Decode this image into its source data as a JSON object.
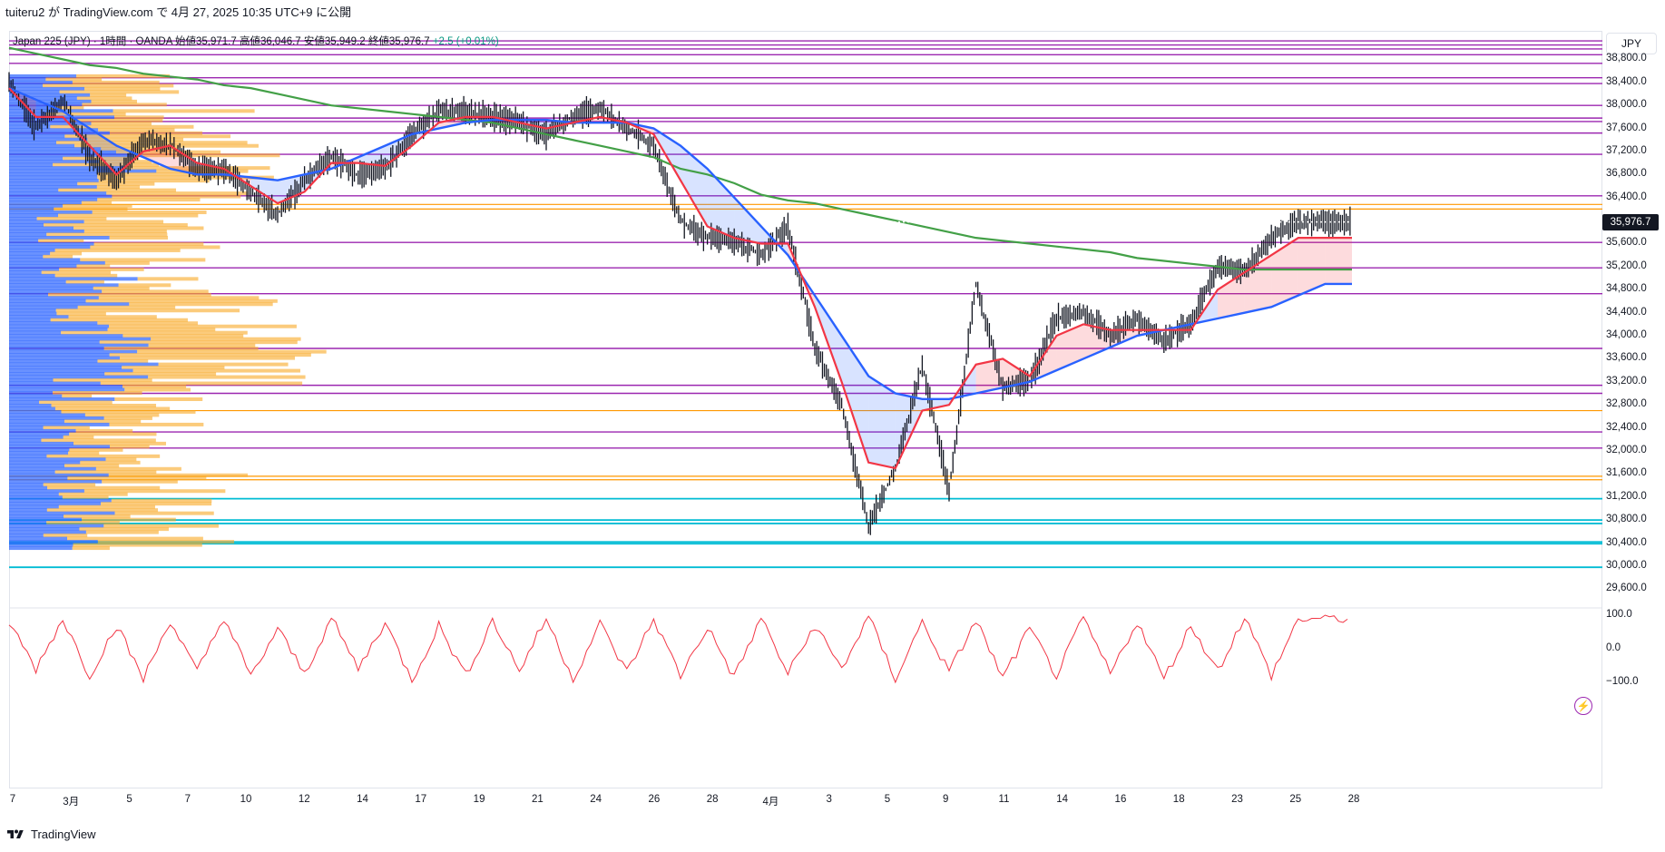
{
  "header": {
    "text": "tuiteru2 が TradingView.com で 4月 27, 2025 10:35 UTC+9 に公開"
  },
  "legend": {
    "symbol": "Japan 225 (JPY) · 1時間 · OANDA",
    "open_label": "始値",
    "open": "35,971.7",
    "high_label": "高値",
    "high": "36,046.7",
    "low_label": "安値",
    "low": "35,949.2",
    "close_label": "終値",
    "close": "35,976.7",
    "change": "+2.5 (+0.01%)"
  },
  "currency": "JPY",
  "price_tag": "35,976.7",
  "footer": {
    "brand": "TradingView"
  },
  "colors": {
    "candle": "#131722",
    "ema_fast": "#f23645",
    "ema_slow": "#2962ff",
    "sma_long": "#43a047",
    "level_purple": "#9c27b0",
    "level_orange": "#ff9800",
    "level_cyan": "#00bcd4",
    "vp_blue": "#2962ff",
    "vp_orange": "#f9a825",
    "oscillator": "#f23645"
  },
  "chart_data": [
    {
      "type": "line",
      "title": "",
      "xlabel": "",
      "ylabel": "",
      "ylim": [
        29400,
        39200
      ],
      "x_ticks": [
        "7",
        "3月",
        "5",
        "7",
        "10",
        "12",
        "14",
        "17",
        "19",
        "21",
        "24",
        "26",
        "28",
        "4月",
        "3",
        "5",
        "9",
        "11",
        "14",
        "16",
        "18",
        "23",
        "25",
        "28"
      ],
      "y_ticks": [
        38800,
        38400,
        38000,
        37600,
        37200,
        36800,
        36400,
        35976.7,
        35600,
        35200,
        34800,
        34400,
        34000,
        33600,
        33200,
        32800,
        32400,
        32000,
        31600,
        31200,
        30800,
        30400,
        30000,
        29600
      ],
      "x": [
        0,
        2,
        4,
        6,
        8,
        10,
        12,
        14,
        16,
        18,
        20,
        22,
        24,
        26,
        28,
        30,
        32,
        34,
        36,
        38,
        40,
        42,
        44,
        46,
        48,
        50,
        52,
        54,
        56,
        58,
        60,
        62,
        64,
        66,
        68,
        70,
        72,
        74,
        76,
        78,
        80,
        82,
        84,
        86,
        88,
        90,
        92,
        94,
        96,
        98,
        100
      ],
      "series": [
        {
          "values": [
            38400,
            37600,
            38100,
            37100,
            36700,
            37400,
            37300,
            36900,
            36900,
            36500,
            36100,
            36700,
            37100,
            36800,
            36900,
            37500,
            37900,
            37900,
            37800,
            37700,
            37500,
            37800,
            37950,
            37600,
            37300,
            36000,
            35700,
            35650,
            35400,
            35900,
            33800,
            32800,
            30700,
            31700,
            33500,
            31300,
            34900,
            33100,
            33200,
            34300,
            34400,
            34000,
            34300,
            33900,
            34200,
            35200,
            35100,
            35700,
            35976.7,
            35976.7,
            35976.7
          ]
        },
        {
          "values": [
            38300,
            37800,
            37800,
            37300,
            36800,
            37200,
            37300,
            37000,
            36900,
            36600,
            36300,
            36500,
            37000,
            37000,
            36950,
            37300,
            37700,
            37800,
            37800,
            37700,
            37600,
            37700,
            37800,
            37700,
            37500,
            36700,
            35900,
            35700,
            35600,
            35600,
            34500,
            33200,
            31800,
            31700,
            32700,
            32800,
            33500,
            33600,
            33300,
            34000,
            34200,
            34100,
            34100,
            34100,
            34100,
            34800,
            35100,
            35400,
            35700,
            35700,
            35700
          ]
        },
        {
          "values": [
            38300,
            38100,
            37900,
            37600,
            37300,
            37100,
            36900,
            36800,
            36800,
            36750,
            36700,
            36800,
            36900,
            37100,
            37300,
            37500,
            37600,
            37700,
            37750,
            37750,
            37750,
            37700,
            37700,
            37700,
            37600,
            37300,
            36900,
            36400,
            35900,
            35400,
            34700,
            34000,
            33300,
            33000,
            32900,
            32900,
            33000,
            33100,
            33200,
            33400,
            33600,
            33800,
            34000,
            34100,
            34200,
            34300,
            34400,
            34500,
            34700,
            34900,
            34900
          ]
        },
        {
          "values": [
            39000,
            38900,
            38800,
            38700,
            38650,
            38550,
            38500,
            38450,
            38350,
            38300,
            38200,
            38100,
            38000,
            37950,
            37900,
            37850,
            37800,
            37750,
            37700,
            37600,
            37500,
            37400,
            37300,
            37200,
            37100,
            36900,
            36800,
            36650,
            36450,
            36350,
            36300,
            36200,
            36100,
            36000,
            35900,
            35800,
            35700,
            35650,
            35600,
            35550,
            35500,
            35450,
            35350,
            35300,
            35250,
            35200,
            35150,
            35150,
            35150,
            35150,
            35150
          ]
        }
      ]
    },
    {
      "type": "line",
      "title": "",
      "ylim": [
        -100,
        100
      ],
      "y_ticks": [
        100,
        0.0,
        -100.0
      ],
      "series": [
        {
          "values": [
            80,
            -60,
            90,
            -80,
            70,
            -90,
            85,
            -70,
            95,
            -85,
            60,
            -75,
            90,
            -60,
            80,
            -95,
            70,
            -80,
            85,
            -65,
            90,
            -90,
            75,
            -70,
            88,
            -80,
            65,
            -85,
            92,
            -75,
            70,
            -60,
            95,
            -90,
            80,
            -70,
            85,
            -88,
            60,
            -80,
            90,
            -75,
            82,
            -90,
            70,
            -65,
            95,
            -80,
            88,
            90,
            90
          ]
        }
      ]
    }
  ]
}
